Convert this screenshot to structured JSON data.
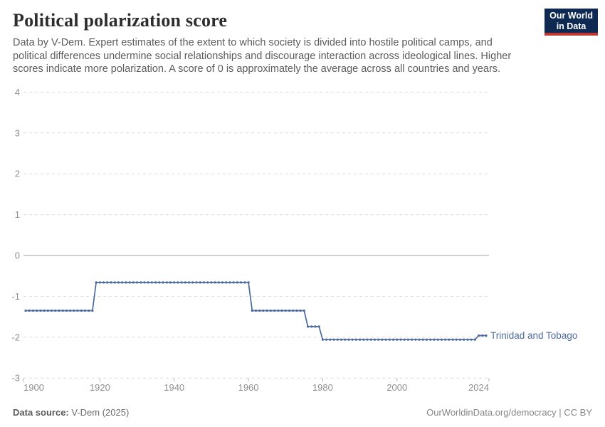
{
  "header": {
    "title": "Political polarization score",
    "subtitle_lines": [
      "Data by V-Dem. Expert estimates of the extent to which society is divided into hostile political camps, and",
      "political differences undermine social relationships and discourage interaction across ideological lines. Higher",
      "scores indicate more polarization. A score of 0 is approximately the average across all countries and years."
    ],
    "logo": {
      "line1": "Our World",
      "line2": "in Data",
      "bg_color": "#0e2a52",
      "bar_color": "#bc3732"
    }
  },
  "chart_data": {
    "type": "line",
    "title": "Political polarization score",
    "xlabel": "",
    "ylabel": "",
    "xlim": [
      1900,
      2024
    ],
    "ylim": [
      -3,
      4
    ],
    "grid": "horizontal-dashed, zero-line-solid",
    "legend_position": "end-of-line-label",
    "yticks": [
      4,
      3,
      2,
      1,
      0,
      -1,
      -2,
      -3
    ],
    "xticks": [
      1900,
      1920,
      1940,
      1960,
      1980,
      2000,
      2024
    ],
    "markers": "dot-per-year",
    "series": [
      {
        "name": "Trinidad and Tobago",
        "color": "#4c6a9c",
        "year_start": 1900,
        "values": [
          -1.35,
          -1.35,
          -1.35,
          -1.35,
          -1.35,
          -1.35,
          -1.35,
          -1.35,
          -1.35,
          -1.35,
          -1.35,
          -1.35,
          -1.35,
          -1.35,
          -1.35,
          -1.35,
          -1.35,
          -1.35,
          -1.35,
          -0.66,
          -0.66,
          -0.66,
          -0.66,
          -0.66,
          -0.66,
          -0.66,
          -0.66,
          -0.66,
          -0.66,
          -0.66,
          -0.66,
          -0.66,
          -0.66,
          -0.66,
          -0.66,
          -0.66,
          -0.66,
          -0.66,
          -0.66,
          -0.66,
          -0.66,
          -0.66,
          -0.66,
          -0.66,
          -0.66,
          -0.66,
          -0.66,
          -0.66,
          -0.66,
          -0.66,
          -0.66,
          -0.66,
          -0.66,
          -0.66,
          -0.66,
          -0.66,
          -0.66,
          -0.66,
          -0.66,
          -0.66,
          -0.66,
          -1.35,
          -1.35,
          -1.35,
          -1.35,
          -1.35,
          -1.35,
          -1.35,
          -1.35,
          -1.35,
          -1.35,
          -1.35,
          -1.35,
          -1.35,
          -1.35,
          -1.35,
          -1.74,
          -1.74,
          -1.74,
          -1.74,
          -2.06,
          -2.06,
          -2.06,
          -2.06,
          -2.06,
          -2.06,
          -2.06,
          -2.06,
          -2.06,
          -2.06,
          -2.06,
          -2.06,
          -2.06,
          -2.06,
          -2.06,
          -2.06,
          -2.06,
          -2.06,
          -2.06,
          -2.06,
          -2.06,
          -2.06,
          -2.06,
          -2.06,
          -2.06,
          -2.06,
          -2.06,
          -2.06,
          -2.06,
          -2.06,
          -2.06,
          -2.06,
          -2.06,
          -2.06,
          -2.06,
          -2.06,
          -2.06,
          -2.06,
          -2.06,
          -2.06,
          -2.06,
          -2.06,
          -1.96,
          -1.96,
          -1.96
        ]
      }
    ]
  },
  "footer": {
    "data_source_label": "Data source:",
    "data_source_value": " V-Dem (2025)",
    "right_text": "OurWorldinData.org/democracy | CC BY"
  },
  "colors": {
    "line": "#4c6a9c",
    "grid": "#dcdcdc",
    "zero_line": "#a3a3a3",
    "axis_text": "#8f8f8f",
    "title_text": "#2d2d2d",
    "subtitle_text": "#5c5c5c"
  }
}
